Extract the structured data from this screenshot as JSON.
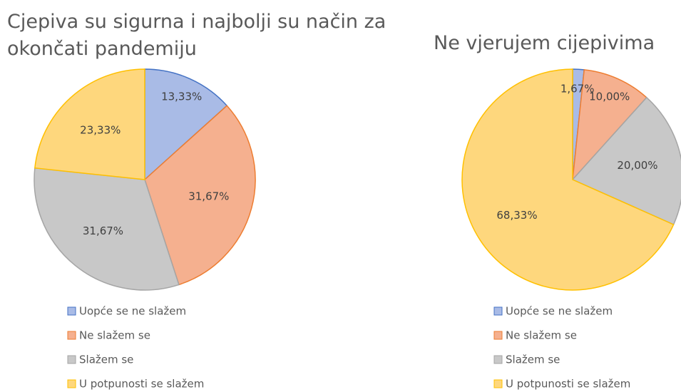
{
  "chart_data": [
    {
      "type": "pie",
      "title": "Cjepiva su sigurna i najbolji su način za okončati pandemiju",
      "categories": [
        "Uopće se ne slažem",
        "Ne slažem se",
        "Slažem se",
        "U potpunosti se slažem"
      ],
      "values": [
        13.33,
        31.67,
        31.67,
        23.33
      ],
      "value_labels": [
        "13,33%",
        "31,67%",
        "31,67%",
        "23,33%"
      ],
      "colors": [
        "#4472c4",
        "#ed7d31",
        "#a5a5a5",
        "#ffc000"
      ],
      "fill_colors": [
        "#a9bbe6",
        "#f5b08f",
        "#c8c8c8",
        "#fed77d"
      ],
      "legend": "bottom"
    },
    {
      "type": "pie",
      "title": "Ne vjerujem cijepivima",
      "categories": [
        "Uopće se ne slažem",
        "Ne slažem se",
        "Slažem se",
        "U potpunosti se slažem"
      ],
      "values": [
        1.67,
        10.0,
        20.0,
        68.33
      ],
      "value_labels": [
        "1,67%",
        "10,00%",
        "20,00%",
        "68,33%"
      ],
      "colors": [
        "#4472c4",
        "#ed7d31",
        "#a5a5a5",
        "#ffc000"
      ],
      "fill_colors": [
        "#a9bbe6",
        "#f5b08f",
        "#c8c8c8",
        "#fed77d"
      ],
      "legend": "bottom"
    }
  ]
}
